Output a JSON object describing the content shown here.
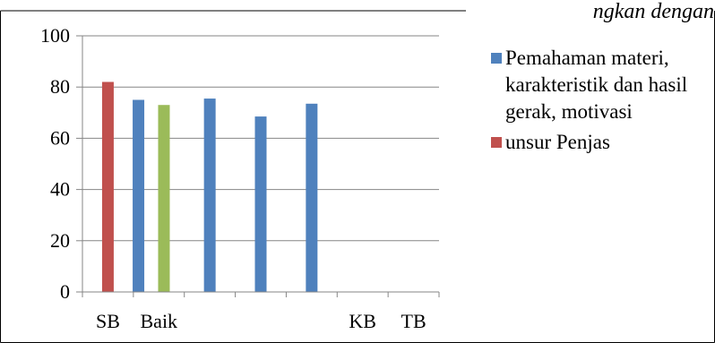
{
  "chart_data": {
    "type": "bar",
    "title": "",
    "xlabel": "",
    "ylabel": "",
    "ylim": [
      0,
      100
    ],
    "yticks": [
      0,
      20,
      40,
      60,
      80,
      100
    ],
    "grid": true,
    "legend_position": "right",
    "category_slots": 7,
    "category_labels": [
      {
        "slot": 0,
        "label": "SB"
      },
      {
        "slot": 1,
        "label": "Baik"
      },
      {
        "slot": 5,
        "label": "KB"
      },
      {
        "slot": 6,
        "label": "TB"
      }
    ],
    "bars": [
      {
        "slot": 0,
        "offset": 0,
        "value": 82,
        "color": "#c0504d"
      },
      {
        "slot": 1,
        "offset": -0.4,
        "value": 75,
        "color": "#4f81bd"
      },
      {
        "slot": 1,
        "offset": 0.1,
        "value": 73,
        "color": "#9bbb59"
      },
      {
        "slot": 2,
        "offset": 0,
        "value": 75.5,
        "color": "#4f81bd"
      },
      {
        "slot": 3,
        "offset": 0,
        "value": 68.5,
        "color": "#4f81bd"
      },
      {
        "slot": 4,
        "offset": 0,
        "value": 73.5,
        "color": "#4f81bd"
      }
    ],
    "legend": [
      {
        "label": "Pemahaman materi, karakteristik dan hasil gerak, motivasi",
        "color": "#4f81bd"
      },
      {
        "label": "unsur Penjas",
        "color": "#c0504d"
      }
    ],
    "top_right_fragment": "ngkan dengan"
  }
}
